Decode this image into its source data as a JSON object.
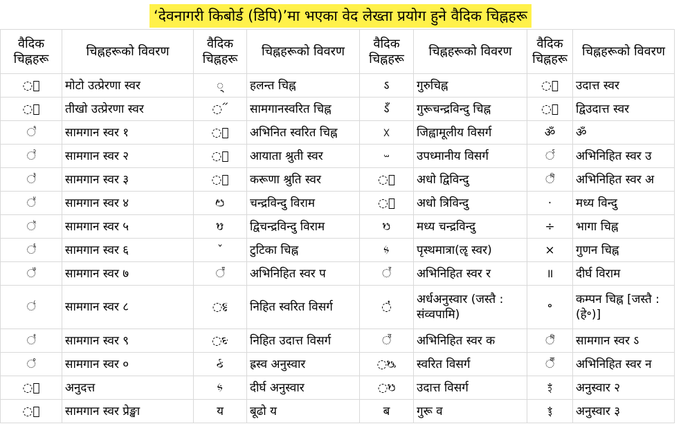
{
  "title": "‘देवनागरी किबोर्ड (डिपि)’मा भएका वेद लेख्ता प्रयोग हुने वैदिक चिह्नहरू",
  "headers": [
    "वैदिक चिह्नहरू",
    "चिह्नहरूको विवरण",
    "वैदिक चिह्नहरू",
    "चिह्नहरूको विवरण",
    "वैदिक चिह्नहरू",
    "चिह्नहरूको विवरण",
    "वैदिक चिह्नहरू",
    "चिह्नहरूको विवरण"
  ],
  "rows": [
    [
      "◌᳐",
      "मोटो उत्प्रेरणा स्वर",
      "◌्",
      "हलन्त चिह्न",
      "ऽ",
      "गुरुचिह्न",
      "◌॑",
      "उदात्त स्वर"
    ],
    [
      "◌᳑",
      "तीखो उत्प्रेरणा स्वर",
      "◌᳓",
      "सामगानस्वरित चिह्न",
      "ऽँ",
      "गुरूचन्द्रविन्दु चिह्न",
      "◌᳚",
      "द्विउदात्त स्वर"
    ],
    [
      "◌꣡",
      "सामगान स्वर १",
      "◌᳭",
      "अभिनित स्वरित चिह्न",
      "ᳵ",
      "जिह्वामूलीय विसर्ग",
      "ॐ",
      "ॐ"
    ],
    [
      "◌꣢",
      "सामगान स्वर २",
      "◌᳑",
      "आयाता श्रुती स्वर",
      "ᳶ",
      "उपध्मानीय विसर्ग",
      "◌꣱",
      "अभिनिहित स्वर उ"
    ],
    [
      "◌꣣",
      "सामगान स्वर ३",
      "◌᳙",
      "करूणा श्रुति स्वर",
      "◌᳜",
      "अधो द्विविन्दु",
      "◌꣰",
      "अभिनिहित स्वर अ"
    ],
    [
      "◌꣤",
      "सामगान स्वर ४",
      "ᳩ",
      "चन्द्रविन्दु विराम",
      "◌᳝",
      "अधो त्रिविन्दु",
      "·",
      "मध्य विन्दु"
    ],
    [
      "◌꣥",
      "सामगान स्वर ५",
      "ᳪ",
      "द्विचन्द्रविन्दु विराम",
      "ᳫ",
      "मध्य चन्द्रविन्दु",
      "÷",
      "भागा चिह्न"
    ],
    [
      "◌꣦",
      "सामगान स्वर ६",
      "ˇ",
      "टुटिका चिह्न",
      "ᳱ",
      "पृस्थमात्रा(ॡ स्वर)",
      "×",
      "गुणन चिह्न"
    ],
    [
      "◌꣧",
      "सामगान स्वर ७",
      "◌꣮",
      "अभिनिहित स्वर प",
      "◌꣯",
      "अभिनिहित स्वर र",
      "॥",
      "दीर्घ विराम"
    ],
    [
      "◌꣨",
      "सामगान स्वर ८",
      "◌ᳯ",
      "निहित स्वरित विसर्ग",
      "◌̓",
      "अर्धअनुस्वार (जस्तै : संव्वपामि)",
      "॰",
      "कम्पन चिह्न [जस्तै : (हे॰)]"
    ],
    [
      "◌꣩",
      "सामगान स्वर ९",
      "◌ᳮ",
      "निहित उदात्त विसर्ग",
      "◌꣫",
      "अभिनिहित स्वर क",
      "◌꣰",
      "सामगान स्वर ऽ"
    ],
    [
      "◌꣠",
      "सामगान स्वर ०",
      "ᳰ",
      "ह्रस्व अनुस्वार",
      "◌ᳬ",
      "स्वरित विसर्ग",
      "◌꣬",
      "अभिनिहित स्वर न"
    ],
    [
      "◌॒",
      "अनुदत्त",
      "ᳱ",
      "दीर्घ अनुस्वार",
      "◌ᳫ",
      "उदात्त विसर्ग",
      "ꣵ",
      "अनुस्वार २"
    ],
    [
      "◌᳒",
      "सामगान स्वर प्रेङ्खा",
      "य",
      "बूढो य",
      "ब",
      "गुरू व",
      "ꣶ",
      "अनुस्वार ३"
    ]
  ]
}
